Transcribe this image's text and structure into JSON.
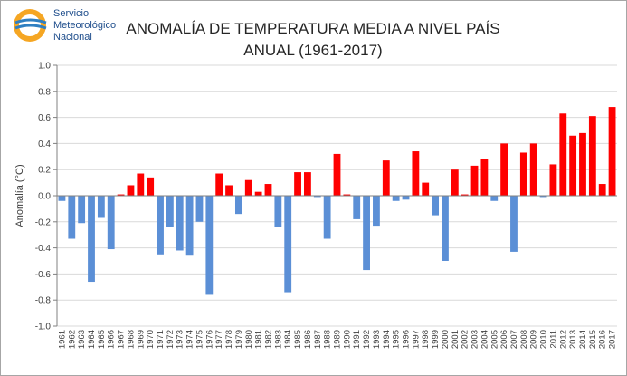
{
  "logo": {
    "line1": "Servicio",
    "line2": "Meteorológico",
    "line3": "Nacional"
  },
  "chart_data": {
    "type": "bar",
    "title": "ANOMALÍA DE TEMPERATURA MEDIA A NIVEL PAÍS",
    "subtitle": "ANUAL (1961-2017)",
    "xlabel": "",
    "ylabel": "Anomalía (°C)",
    "ylim": [
      -1.0,
      1.0
    ],
    "yticks": [
      "1.0",
      "0.8",
      "0.6",
      "0.4",
      "0.2",
      "0.0",
      "-0.2",
      "-0.4",
      "-0.6",
      "-0.8",
      "-1.0"
    ],
    "grid": true,
    "colors": {
      "positive": "#ff0000",
      "negative": "#5b8fd6"
    },
    "categories": [
      "1961",
      "1962",
      "1963",
      "1964",
      "1965",
      "1966",
      "1967",
      "1968",
      "1969",
      "1970",
      "1971",
      "1972",
      "1973",
      "1974",
      "1975",
      "1976",
      "1977",
      "1978",
      "1979",
      "1980",
      "1981",
      "1982",
      "1983",
      "1984",
      "1985",
      "1986",
      "1987",
      "1988",
      "1989",
      "1990",
      "1991",
      "1992",
      "1993",
      "1994",
      "1995",
      "1996",
      "1997",
      "1998",
      "1999",
      "2000",
      "2001",
      "2002",
      "2003",
      "2004",
      "2005",
      "2006",
      "2007",
      "2008",
      "2009",
      "2010",
      "2011",
      "2012",
      "2013",
      "2014",
      "2015",
      "2016",
      "2017"
    ],
    "values": [
      -0.04,
      -0.33,
      -0.21,
      -0.66,
      -0.17,
      -0.41,
      0.01,
      0.08,
      0.17,
      0.14,
      -0.45,
      -0.24,
      -0.42,
      -0.46,
      -0.2,
      -0.76,
      0.17,
      0.08,
      -0.14,
      0.12,
      0.03,
      0.09,
      -0.24,
      -0.74,
      0.18,
      0.18,
      -0.01,
      -0.33,
      0.32,
      0.01,
      -0.18,
      -0.57,
      -0.23,
      0.27,
      -0.04,
      -0.03,
      0.34,
      0.1,
      -0.15,
      -0.5,
      0.2,
      0.01,
      0.23,
      0.28,
      -0.04,
      0.4,
      -0.43,
      0.33,
      0.4,
      -0.01,
      0.24,
      0.63,
      0.46,
      0.48,
      0.61,
      0.09,
      0.68
    ]
  }
}
